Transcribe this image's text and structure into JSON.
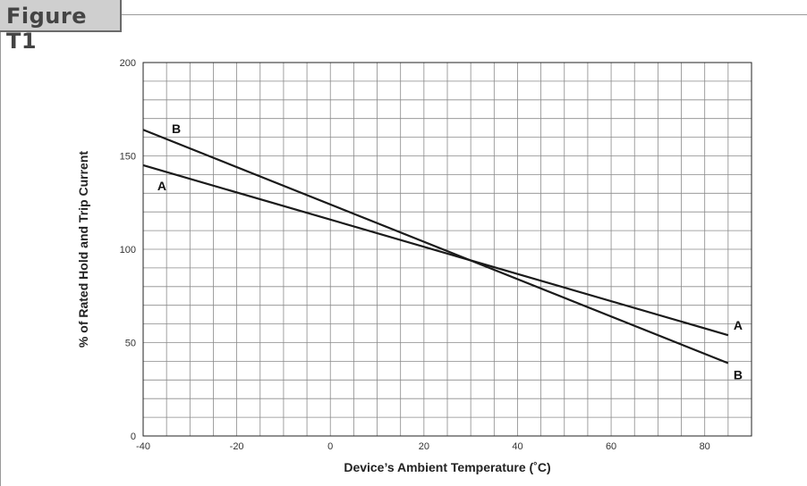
{
  "figure": {
    "title": "Figure T1"
  },
  "chart_data": {
    "type": "line",
    "title": "",
    "xlabel": "Device’s Ambient Temperature (˚C)",
    "ylabel": "% of Rated Hold and Trip Current",
    "xlim": [
      -40,
      90
    ],
    "ylim": [
      0,
      200
    ],
    "grid": true,
    "x_ticks": [
      -40,
      -20,
      0,
      20,
      40,
      60,
      80
    ],
    "y_ticks": [
      0,
      50,
      100,
      150,
      200
    ],
    "series": [
      {
        "name": "A",
        "x": [
          -40,
          85
        ],
        "y": [
          145,
          54
        ]
      },
      {
        "name": "B",
        "x": [
          -40,
          85
        ],
        "y": [
          164,
          39
        ]
      }
    ]
  }
}
